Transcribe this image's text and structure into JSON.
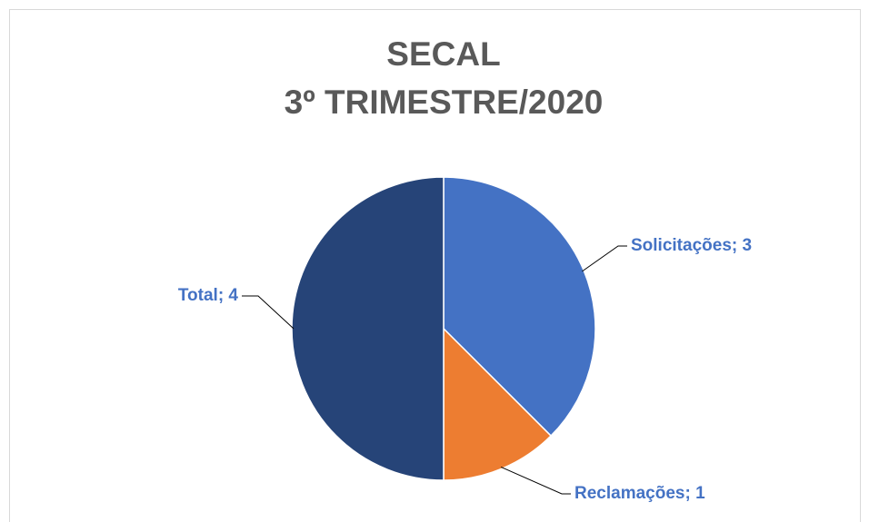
{
  "chart_data": {
    "type": "pie",
    "title": [
      "SECAL",
      "3º TRIMESTRE/2020"
    ],
    "values": [
      3,
      1,
      4
    ],
    "value_labels": [
      "Solicitações; 3",
      "Reclamações; 1",
      "Total; 4"
    ],
    "colors": [
      "#4472c4",
      "#ed7d31",
      "#264478"
    ]
  }
}
